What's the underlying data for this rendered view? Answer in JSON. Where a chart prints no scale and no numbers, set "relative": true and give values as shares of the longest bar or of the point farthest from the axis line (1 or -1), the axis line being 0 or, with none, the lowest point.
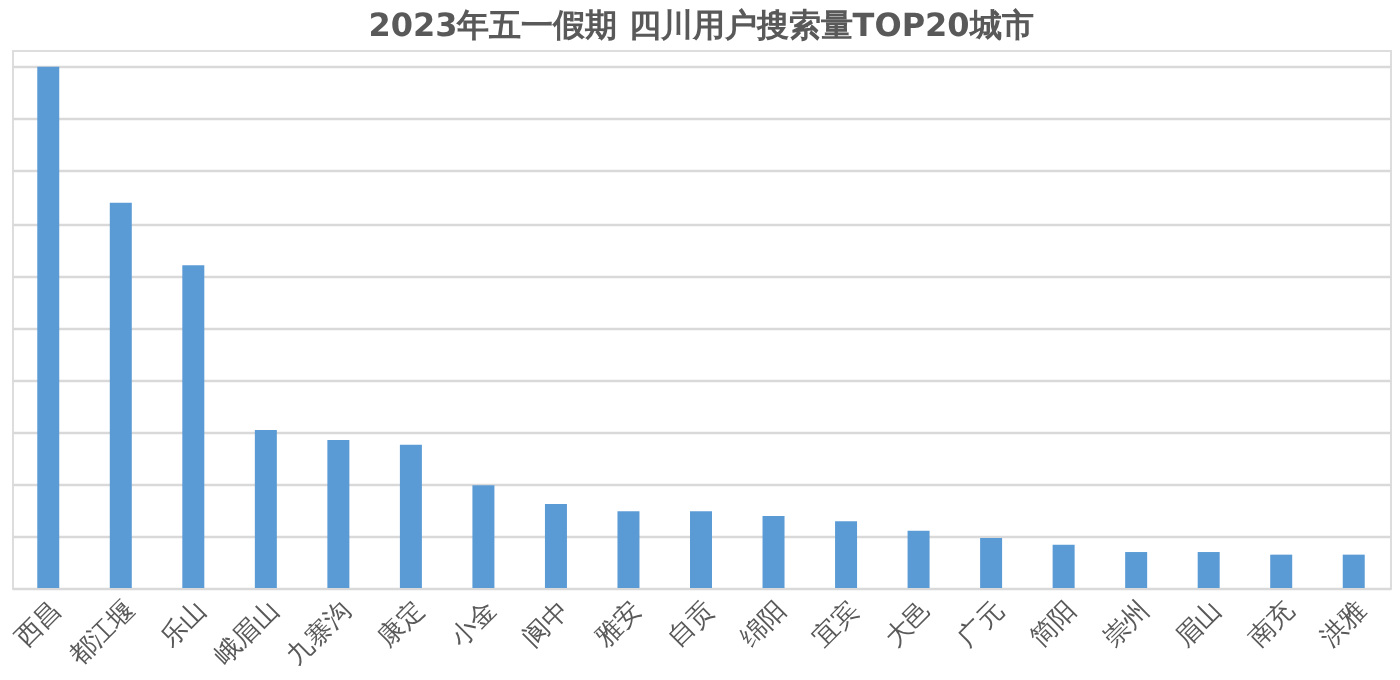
{
  "chart_data": {
    "type": "bar",
    "title": "2023年五一假期 四川用户搜索量TOP20城市",
    "relative": true,
    "grid": "y",
    "color": "#5b9bd5",
    "categories": [
      "西昌",
      "都江堰",
      "乐山",
      "峨眉山",
      "九寨沟",
      "康定",
      "小金",
      "阆中",
      "雅安",
      "自贡",
      "绵阳",
      "宜宾",
      "大邑",
      "广元",
      "简阳",
      "崇州",
      "眉山",
      "南充",
      "洪雅"
    ],
    "values": [
      1,
      0.739,
      0.619,
      0.303,
      0.284,
      0.275,
      0.197,
      0.161,
      0.147,
      0.147,
      0.138,
      0.128,
      0.11,
      0.096,
      0.083,
      0.069,
      0.069,
      0.064,
      0.064
    ]
  }
}
